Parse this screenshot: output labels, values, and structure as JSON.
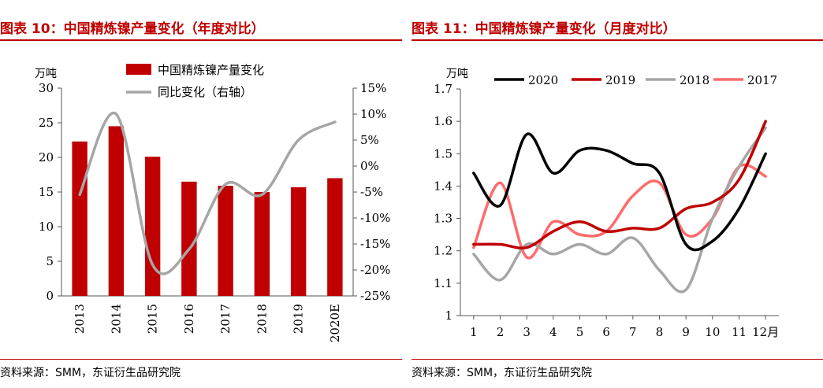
{
  "left": {
    "title": "图表 10：中国精炼镍产量变化（年度对比）",
    "source": "资料来源：SMM，东证衍生品研究院",
    "chart_data": {
      "type": "bar",
      "categories": [
        "2013",
        "2014",
        "2015",
        "2016",
        "2017",
        "2018",
        "2019",
        "2020E"
      ],
      "ylabel": "万吨",
      "ylim": [
        0,
        30
      ],
      "yticks": [
        "0",
        "5",
        "10",
        "15",
        "20",
        "25",
        "30"
      ],
      "y2lim": [
        -25,
        15
      ],
      "y2ticks": [
        "-25%",
        "-20%",
        "-15%",
        "-10%",
        "-5%",
        "0%",
        "5%",
        "10%",
        "15%"
      ],
      "legend_position": "top",
      "grid": false,
      "series": [
        {
          "name": "中国精炼镍产量变化",
          "type": "bar",
          "axis": "left",
          "color": "#c00000",
          "values": [
            22.3,
            24.5,
            20.1,
            16.5,
            15.9,
            15.0,
            15.7,
            17.0
          ]
        },
        {
          "name": "同比变化（右轴）",
          "type": "line",
          "axis": "right",
          "color": "#a6a6a6",
          "values": [
            -5.5,
            10,
            -19,
            -16,
            -3.5,
            -5.5,
            5.0,
            8.5
          ]
        }
      ]
    }
  },
  "right": {
    "title": "图表 11：中国精炼镍产量变化（月度对比）",
    "source": "资料来源：SMM，东证衍生品研究院",
    "chart_data": {
      "type": "line",
      "x": [
        1,
        2,
        3,
        4,
        5,
        6,
        7,
        8,
        9,
        10,
        11,
        12
      ],
      "xticks": [
        "1",
        "2",
        "3",
        "4",
        "5",
        "6",
        "7",
        "8",
        "9",
        "10",
        "11",
        "12月"
      ],
      "ylabel": "万吨",
      "ylim": [
        1.0,
        1.7
      ],
      "yticks": [
        "1",
        "1.1",
        "1.2",
        "1.3",
        "1.4",
        "1.5",
        "1.6",
        "1.7"
      ],
      "legend_position": "top",
      "grid": false,
      "series": [
        {
          "name": "2020",
          "color": "#000000",
          "values": [
            1.44,
            1.34,
            1.56,
            1.44,
            1.51,
            1.51,
            1.47,
            1.44,
            1.22,
            1.23,
            1.33,
            1.5
          ]
        },
        {
          "name": "2019",
          "color": "#c00000",
          "values": [
            1.22,
            1.22,
            1.21,
            1.26,
            1.29,
            1.26,
            1.27,
            1.27,
            1.33,
            1.35,
            1.42,
            1.6
          ]
        },
        {
          "name": "2018",
          "color": "#a6a6a6",
          "values": [
            1.19,
            1.11,
            1.22,
            1.19,
            1.22,
            1.19,
            1.24,
            1.14,
            1.08,
            1.3,
            1.46,
            1.58
          ]
        },
        {
          "name": "2017",
          "color": "#ff6b6b",
          "values": [
            1.21,
            1.41,
            1.18,
            1.29,
            1.25,
            1.26,
            1.37,
            1.41,
            1.25,
            1.3,
            1.46,
            1.43
          ]
        }
      ]
    }
  }
}
